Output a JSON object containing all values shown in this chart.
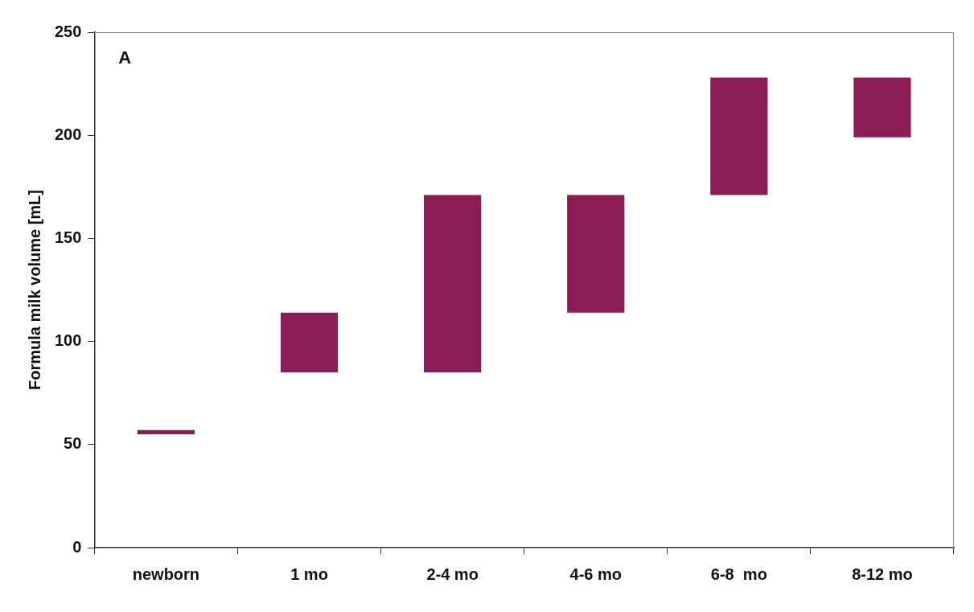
{
  "chart_data": {
    "type": "bar",
    "ylabel": "Formula milk volume [mL]",
    "categories": [
      "newborn",
      "1 mo",
      "2-4 mo",
      "4-6 mo",
      "6-8  mo",
      "8-12 mo"
    ],
    "values": [
      2,
      29,
      86,
      57,
      57,
      29
    ],
    "base": [
      55,
      85,
      85,
      114,
      171,
      199
    ],
    "color": "#8b1c55",
    "ylim": [
      0,
      250
    ],
    "yticks": [
      0,
      50,
      100,
      150,
      200,
      250
    ],
    "grid": false,
    "legend": false,
    "annotations": [
      "A"
    ]
  }
}
